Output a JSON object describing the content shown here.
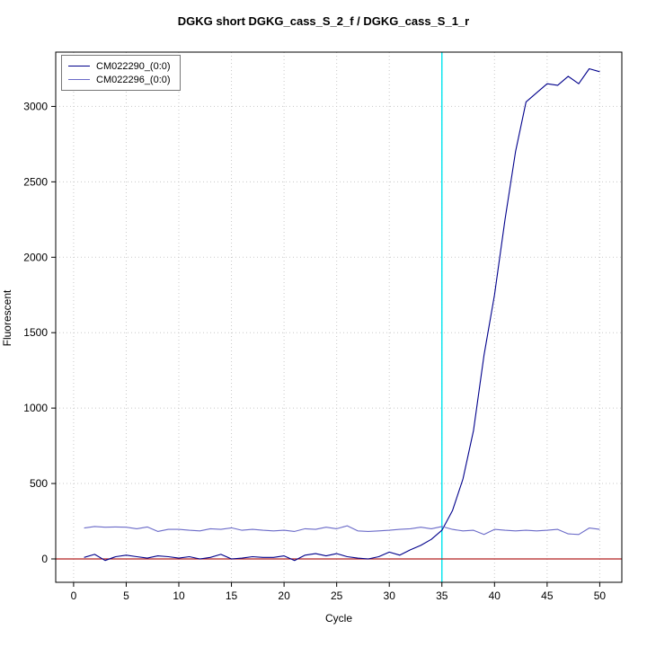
{
  "chart_data": {
    "type": "line",
    "title": "DGKG short DGKG_cass_S_2_f / DGKG_cass_S_1_r",
    "xlabel": "Cycle",
    "ylabel": "Fluorescent",
    "xlim": [
      -1.7,
      52.1
    ],
    "ylim": [
      -155,
      3360
    ],
    "x_ticks": [
      0,
      5,
      10,
      15,
      20,
      25,
      30,
      35,
      40,
      45,
      50
    ],
    "y_ticks": [
      0,
      500,
      1000,
      1500,
      2000,
      2500,
      3000
    ],
    "grid": true,
    "grid_color": "#C8C8C8",
    "legend_position": "top-left",
    "x": [
      1,
      2,
      3,
      4,
      5,
      6,
      7,
      8,
      9,
      10,
      11,
      12,
      13,
      14,
      15,
      16,
      17,
      18,
      19,
      20,
      21,
      22,
      23,
      24,
      25,
      26,
      27,
      28,
      29,
      30,
      31,
      32,
      33,
      34,
      35,
      36,
      37,
      38,
      39,
      40,
      41,
      42,
      43,
      44,
      45,
      46,
      47,
      48,
      49,
      50
    ],
    "series": [
      {
        "name": "CM022290_(0:0)",
        "color": "#00008B",
        "values": [
          10,
          30,
          -10,
          15,
          25,
          15,
          5,
          20,
          15,
          5,
          15,
          0,
          10,
          30,
          0,
          5,
          15,
          10,
          10,
          20,
          -10,
          25,
          35,
          20,
          35,
          15,
          5,
          0,
          15,
          45,
          25,
          60,
          90,
          130,
          190,
          320,
          530,
          850,
          1350,
          1750,
          2250,
          2700,
          3030,
          3090,
          3150,
          3140,
          3200,
          3150,
          3250,
          3230
        ]
      },
      {
        "name": "CM022296_(0:0)",
        "color": "#6A6AC8",
        "values": [
          205,
          215,
          210,
          212,
          210,
          200,
          212,
          182,
          196,
          196,
          190,
          186,
          200,
          196,
          206,
          190,
          196,
          190,
          186,
          190,
          182,
          200,
          196,
          210,
          200,
          220,
          186,
          182,
          186,
          190,
          196,
          200,
          210,
          200,
          215,
          196,
          186,
          190,
          162,
          196,
          190,
          186,
          190,
          186,
          190,
          196,
          166,
          162,
          205,
          196
        ]
      }
    ],
    "threshold_cycle": {
      "axis": "x",
      "value": 35,
      "color": "#00E5EE"
    },
    "baseline": {
      "axis": "y",
      "value": 0,
      "color": "#B22222"
    }
  }
}
